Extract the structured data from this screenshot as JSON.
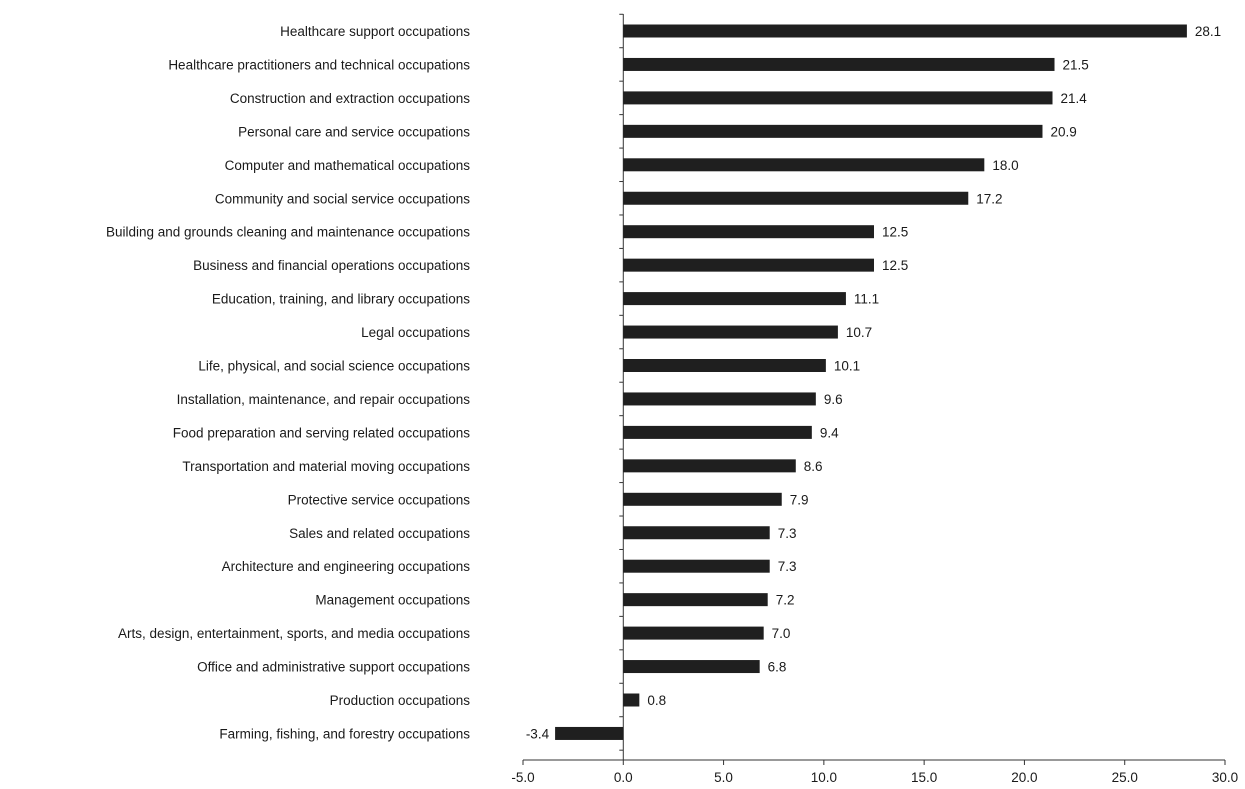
{
  "chart_data": {
    "type": "bar",
    "orientation": "horizontal",
    "title": "",
    "xlabel": "",
    "ylabel": "",
    "categories": [
      "Healthcare support occupations",
      "Healthcare practitioners and technical occupations",
      "Construction and extraction occupations",
      "Personal care and service occupations",
      "Computer and mathematical occupations",
      "Community and social service occupations",
      "Building and grounds cleaning and maintenance occupations",
      "Business and financial operations occupations",
      "Education, training, and library occupations",
      "Legal occupations",
      "Life, physical, and social science occupations",
      "Installation, maintenance, and repair occupations",
      "Food preparation and serving related occupations",
      "Transportation and material moving occupations",
      "Protective service occupations",
      "Sales and related occupations",
      "Architecture and engineering occupations",
      "Management occupations",
      "Arts, design, entertainment, sports, and media occupations",
      "Office and administrative support occupations",
      "Production occupations",
      "Farming, fishing, and forestry occupations"
    ],
    "values": [
      28.1,
      21.5,
      21.4,
      20.9,
      18.0,
      17.2,
      12.5,
      12.5,
      11.1,
      10.7,
      10.1,
      9.6,
      9.4,
      8.6,
      7.9,
      7.3,
      7.3,
      7.2,
      7.0,
      6.8,
      0.8,
      -3.4
    ],
    "data_labels": [
      "28.1",
      "21.5",
      "21.4",
      "20.9",
      "18.0",
      "17.2",
      "12.5",
      "12.5",
      "11.1",
      "10.7",
      "10.1",
      "9.6",
      "9.4",
      "8.6",
      "7.9",
      "7.3",
      "7.3",
      "7.2",
      "7.0",
      "6.8",
      "0.8",
      "-3.4"
    ],
    "xlim": [
      -5.0,
      30.0
    ],
    "xticks": [
      -5.0,
      0.0,
      5.0,
      10.0,
      15.0,
      20.0,
      25.0,
      30.0
    ],
    "xtick_labels": [
      "-5.0",
      "0.0",
      "5.0",
      "10.0",
      "15.0",
      "20.0",
      "25.0",
      "30.0"
    ],
    "grid": false,
    "legend": "none",
    "bar_color": "#1f1f1f"
  }
}
